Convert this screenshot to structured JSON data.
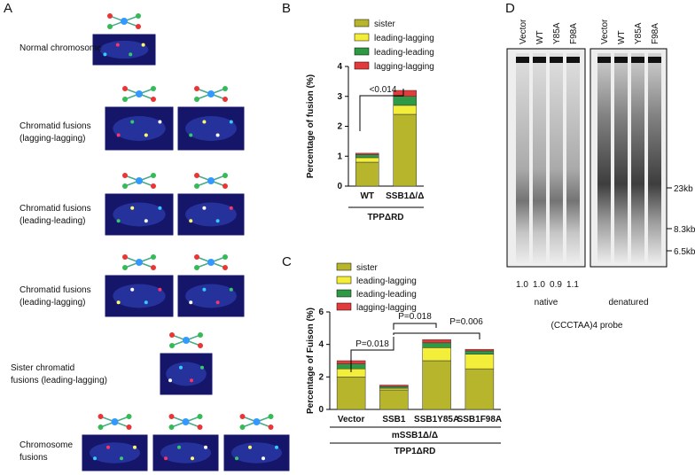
{
  "panel_labels": [
    "A",
    "B",
    "C",
    "D"
  ],
  "panel_a": {
    "labels": [
      [
        "Normal chromosome"
      ],
      [
        "Chromatid fusions",
        "(lagging-lagging)"
      ],
      [
        "Chromatid fusions",
        "(leading-leading)"
      ],
      [
        "Chromatid fusions",
        "(leading-lagging)"
      ],
      [
        "Sister chromatid",
        "fusions (leading-lagging)"
      ],
      [
        "Chromosome",
        "fusions"
      ]
    ]
  },
  "chart_data": [
    {
      "type": "bar",
      "stacked": true,
      "ylabel": "Percentage of fusion (%)",
      "xlabel_lines": [
        "TPPΔRD"
      ],
      "categories": [
        "WT",
        "SSB1Δ/Δ"
      ],
      "ylim": [
        0,
        4
      ],
      "yticks": [
        0,
        1,
        2,
        3,
        4
      ],
      "series": [
        {
          "name": "sister",
          "color": "#b7b52c",
          "values": [
            0.8,
            2.4
          ]
        },
        {
          "name": "leading-lagging",
          "color": "#f2ee3a",
          "values": [
            0.15,
            0.3
          ]
        },
        {
          "name": "leading-leading",
          "color": "#2f9a46",
          "values": [
            0.1,
            0.3
          ]
        },
        {
          "name": "lagging-lagging",
          "color": "#e23b3b",
          "values": [
            0.05,
            0.2
          ]
        }
      ],
      "annotations": [
        "<0.014"
      ]
    },
    {
      "type": "bar",
      "stacked": true,
      "ylabel": "Percentage of Fuison (%)",
      "xlabel_lines": [
        "mSSB1Δ/Δ",
        "TPP1ΔRD"
      ],
      "categories": [
        "Vector",
        "SSB1",
        "SSB1Y85A",
        "SSB1F98A"
      ],
      "ylim": [
        0,
        6
      ],
      "yticks": [
        0,
        2,
        4,
        6
      ],
      "series": [
        {
          "name": "sister",
          "color": "#b7b52c",
          "values": [
            2.0,
            1.2,
            3.0,
            2.5
          ]
        },
        {
          "name": "leading-lagging",
          "color": "#f2ee3a",
          "values": [
            0.5,
            0.1,
            0.8,
            0.9
          ]
        },
        {
          "name": "leading-leading",
          "color": "#2f9a46",
          "values": [
            0.3,
            0.1,
            0.3,
            0.2
          ]
        },
        {
          "name": "lagging-lagging",
          "color": "#e23b3b",
          "values": [
            0.2,
            0.1,
            0.2,
            0.1
          ]
        }
      ],
      "annotations": [
        "P=0.018",
        "P=0.018",
        "P=0.006"
      ]
    }
  ],
  "panel_d": {
    "native_lanes": [
      "Vector",
      "WT",
      "Y85A",
      "F98A"
    ],
    "denatured_lanes": [
      "Vector",
      "WT",
      "Y85A",
      "F98A"
    ],
    "markers": [
      "23kb",
      "8.3kb",
      "6.5kb"
    ],
    "ratios": [
      "1.0",
      "1.0",
      "0.9",
      "1.1"
    ],
    "native": "native",
    "denatured": "denatured",
    "probe": "(CCCTAA)4 probe"
  }
}
